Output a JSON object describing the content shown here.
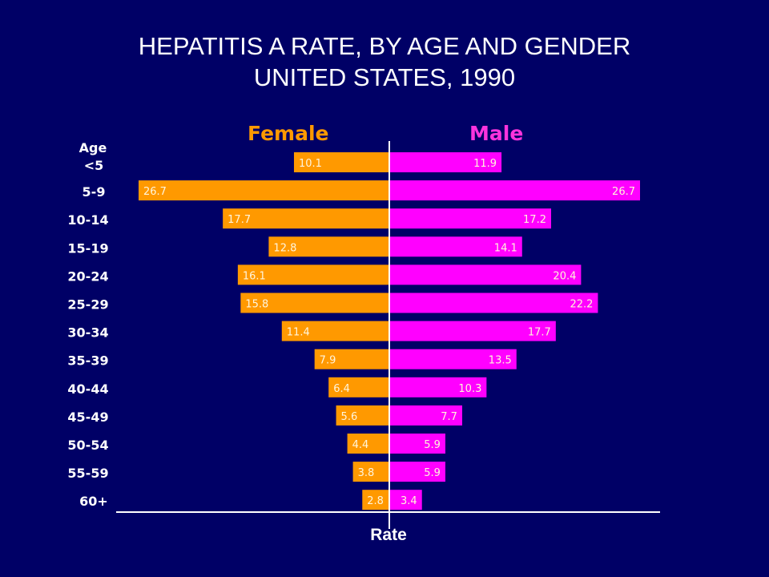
{
  "chart_data": {
    "type": "bar",
    "orientation": "horizontal-butterfly",
    "title": "HEPATITIS A RATE, BY AGE AND GENDER",
    "subtitle": "UNITED STATES, 1990",
    "xlabel": "Rate",
    "ylabel": "Age",
    "categories": [
      "<5",
      "5-9",
      "10-14",
      "15-19",
      "20-24",
      "25-29",
      "30-34",
      "35-39",
      "40-44",
      "45-49",
      "50-54",
      "55-59",
      "60+"
    ],
    "series": [
      {
        "name": "Female",
        "side": "left",
        "color": "#ff9900",
        "values": [
          10.1,
          26.7,
          17.7,
          12.8,
          16.1,
          15.8,
          11.4,
          7.9,
          6.4,
          5.6,
          4.4,
          3.8,
          2.8
        ]
      },
      {
        "name": "Male",
        "side": "right",
        "color": "#ff00ff",
        "values": [
          11.9,
          26.7,
          17.2,
          14.1,
          20.4,
          22.2,
          17.7,
          13.5,
          10.3,
          7.7,
          5.9,
          5.9,
          3.4
        ]
      }
    ],
    "xlim": [
      0,
      26.7
    ],
    "grid": false,
    "legend": "top"
  },
  "colors": {
    "background": "#000066",
    "female": "#ff9900",
    "male": "#ff00ff",
    "female_legend": "#ff9900",
    "male_legend": "#ff33dd",
    "axis": "#ffffff"
  }
}
